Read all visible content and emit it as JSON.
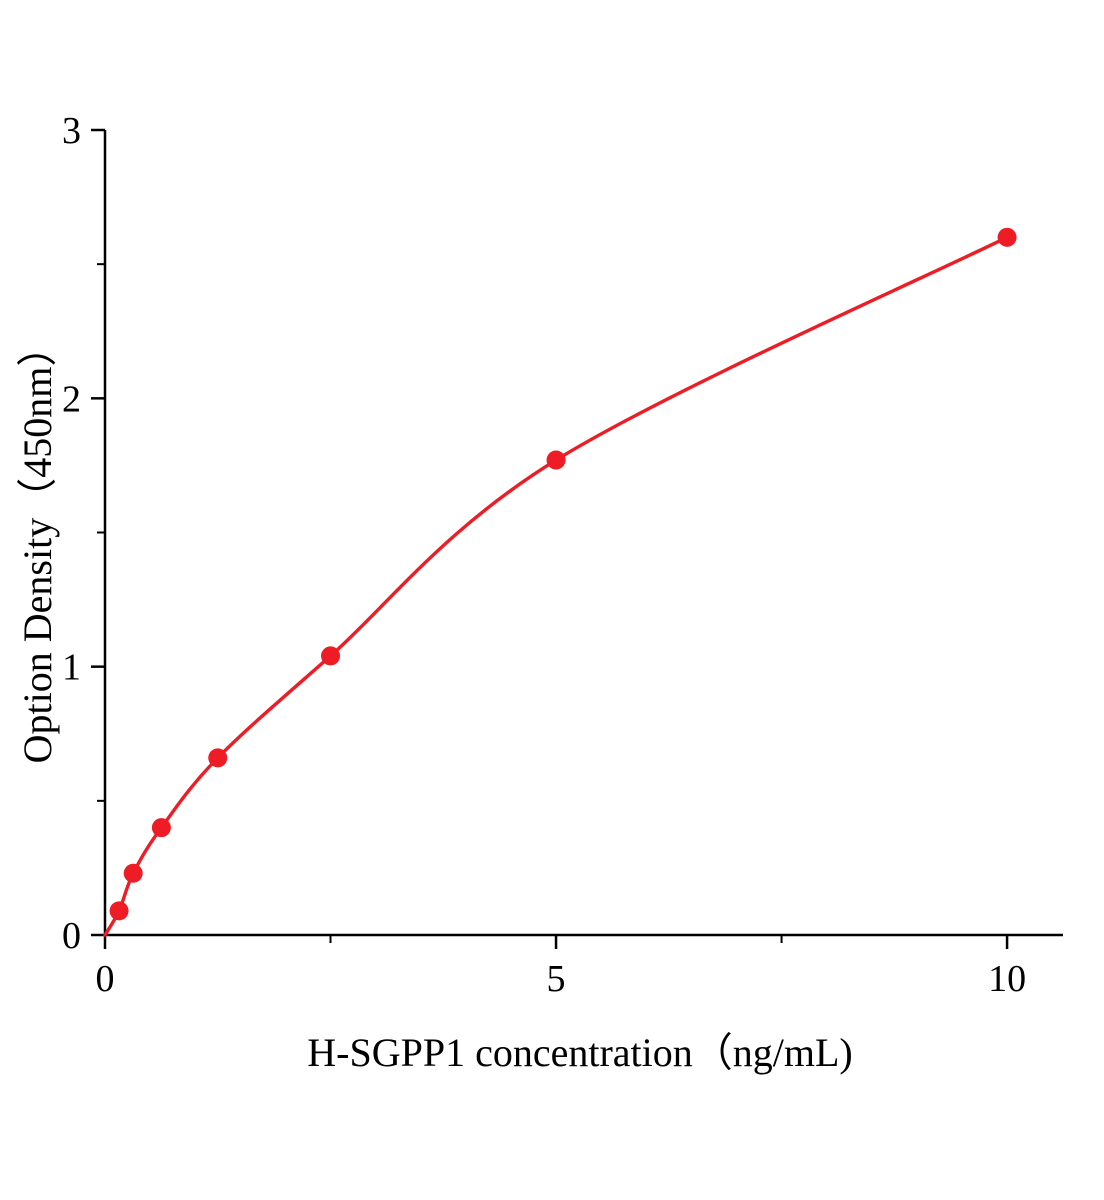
{
  "chart_data": {
    "type": "scatter",
    "title": "",
    "xlabel": "H-SGPP1 concentration（ng/mL)",
    "ylabel": "Option Density（450nm）",
    "x": [
      0.156,
      0.3125,
      0.625,
      1.25,
      2.5,
      5,
      10
    ],
    "y": [
      0.09,
      0.23,
      0.4,
      0.66,
      1.04,
      1.77,
      2.6
    ],
    "curve_start": [
      0,
      0
    ],
    "xlim": [
      0,
      10.62
    ],
    "ylim": [
      0,
      3
    ],
    "x_major_ticks": [
      0,
      5,
      10
    ],
    "x_minor_ticks": [
      2.5,
      7.5
    ],
    "y_major_ticks": [
      0,
      1,
      2,
      3
    ],
    "y_minor_ticks": [
      0.5,
      1.5,
      2.5
    ],
    "line_color": "#ee1c25",
    "marker_color": "#ee1c25",
    "axis_color": "#000000",
    "legend": null,
    "grid": false
  }
}
